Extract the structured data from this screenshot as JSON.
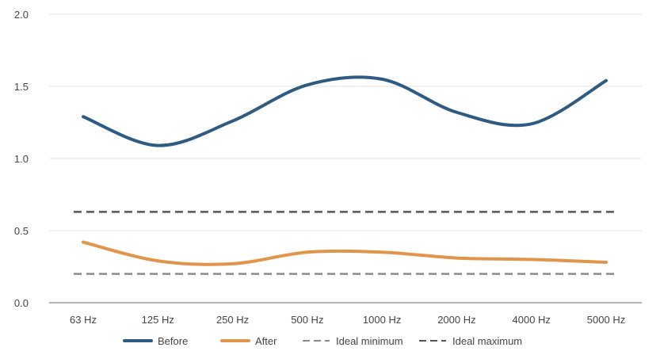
{
  "chart_data": {
    "type": "line",
    "categories": [
      "63 Hz",
      "125 Hz",
      "250 Hz",
      "500 Hz",
      "1000 Hz",
      "2000 Hz",
      "4000 Hz",
      "5000 Hz"
    ],
    "ylim": [
      0,
      2.0
    ],
    "yticks": [
      "0.0",
      "0.5",
      "1.0",
      "1.5",
      "2.0"
    ],
    "ytick_values": [
      0,
      0.5,
      1.0,
      1.5,
      2.0
    ],
    "grid": true,
    "legend_position": "bottom",
    "series": [
      {
        "name": "Before",
        "values": [
          1.29,
          1.09,
          1.26,
          1.51,
          1.55,
          1.32,
          1.24,
          1.54
        ],
        "color": "#2e5b82",
        "style": "solid"
      },
      {
        "name": "After",
        "values": [
          0.42,
          0.29,
          0.27,
          0.35,
          0.35,
          0.31,
          0.3,
          0.28
        ],
        "color": "#e0954a",
        "style": "solid"
      },
      {
        "name": "Ideal minimum",
        "values": [
          0.2,
          0.2,
          0.2,
          0.2,
          0.2,
          0.2,
          0.2,
          0.2
        ],
        "color": "#8a8a8a",
        "style": "dashed"
      },
      {
        "name": "Ideal maximum",
        "values": [
          0.63,
          0.63,
          0.63,
          0.63,
          0.63,
          0.63,
          0.63,
          0.63
        ],
        "color": "#555555",
        "style": "dashed"
      }
    ]
  }
}
